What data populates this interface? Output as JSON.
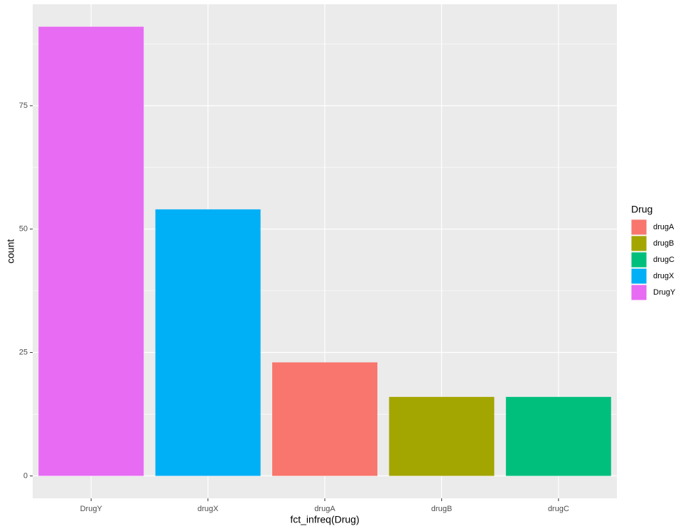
{
  "chart_data": {
    "type": "bar",
    "x_label": "fct_infreq(Drug)",
    "y_label": "count",
    "categories": [
      "DrugY",
      "drugX",
      "drugA",
      "drugB",
      "drugC"
    ],
    "values": [
      91,
      54,
      23,
      16,
      16
    ],
    "colors": [
      "#E76BF3",
      "#00B0F6",
      "#F8766D",
      "#A3A500",
      "#00BF7D"
    ],
    "ylim": [
      -4.55,
      95.55
    ],
    "yticks": [
      0,
      25,
      50,
      75
    ],
    "y_minor_grid": [
      12.5,
      37.5,
      62.5,
      87.5
    ],
    "grid": true,
    "legend": {
      "title": "Drug",
      "position": "right",
      "items": [
        {
          "name": "drugA",
          "color": "#F8766D"
        },
        {
          "name": "drugB",
          "color": "#A3A500"
        },
        {
          "name": "drugC",
          "color": "#00BF7D"
        },
        {
          "name": "drugX",
          "color": "#00B0F6"
        },
        {
          "name": "DrugY",
          "color": "#E76BF3"
        }
      ]
    }
  }
}
